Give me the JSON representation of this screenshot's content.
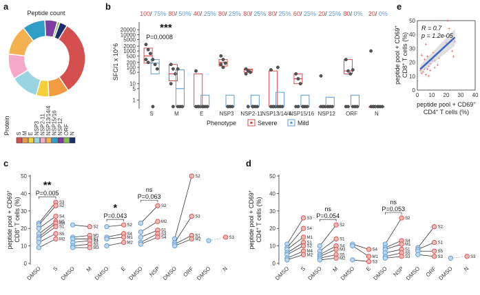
{
  "colors": {
    "severe": "#d94a4a",
    "mild": "#5b9bd5",
    "severe_fill": "#f2b8b5",
    "mild_fill": "#bcd7ee",
    "fit": "#3a64c8"
  },
  "chart_data": [
    {
      "id": "a",
      "type": "pie",
      "panel": "a",
      "title": "Peptide count",
      "legend_title": "Protein",
      "categories": [
        "S",
        "M",
        "E",
        "NSP3",
        "NSP2-11",
        "NSP13/14/4",
        "NSP15/16",
        "NSP12",
        "ORF",
        "N"
      ],
      "values": [
        30,
        8,
        5,
        11,
        10,
        12,
        9,
        5,
        1,
        3
      ],
      "colors": [
        "#d64f4f",
        "#f19a3e",
        "#f5d03c",
        "#9ad4e0",
        "#f6a8c9",
        "#f2b14e",
        "#2f9ec7",
        "#7f3fa0",
        "#7fc24a",
        "#1c2e6d"
      ]
    },
    {
      "id": "b",
      "type": "box",
      "panel": "b",
      "ylabel": "SFC/1 x 10^6",
      "yscale": "log",
      "yticks": [
        1,
        5,
        10,
        50,
        100,
        200,
        500,
        1000,
        2000,
        5000,
        10000,
        20000
      ],
      "ytick_labels": [
        "1",
        "5",
        "10",
        "50",
        "100",
        "200",
        "500",
        "1000",
        "2000",
        "5000",
        "10000",
        "20000"
      ],
      "categories": [
        "S",
        "M",
        "E",
        "NSP3",
        "NSP2-11",
        "NSP13/14/4",
        "NSP15/16",
        "NSP12",
        "ORF",
        "N"
      ],
      "responder_pct": {
        "severe": [
          "100",
          "80",
          "40",
          "80",
          "80",
          "80",
          "60",
          "20",
          "80",
          "20"
        ],
        "mild": [
          "75%",
          "50%",
          "25%",
          "25%",
          "25%",
          "25%",
          "25%",
          "25%",
          "0%",
          "0%"
        ]
      },
      "legend_title": "Phenotype",
      "legend": [
        "Severe",
        "Mild"
      ],
      "annotation": {
        "stars": "***",
        "p_label": "P=0.0008",
        "category": "S"
      },
      "series": [
        {
          "name": "Severe",
          "boxes": [
            [
              180,
              500,
              1500
            ],
            [
              15,
              40,
              150
            ],
            [
              0.4,
              0.4,
              40
            ],
            [
              120,
              200,
              300
            ],
            [
              50,
              70,
              80
            ],
            [
              0.4,
              0.4,
              60
            ],
            [
              10,
              20,
              40
            ],
            [
              0.4,
              0.4,
              0.4
            ],
            [
              40,
              60,
              300
            ],
            [
              0.4,
              0.4,
              0.4
            ]
          ],
          "points": [
            [
              2500,
              1200,
              700,
              300,
              200
            ],
            [
              150,
              80,
              40,
              10,
              0.4
            ],
            [
              60,
              0.4,
              0.4,
              0.4,
              0.4
            ],
            [
              500,
              300,
              180,
              150,
              100
            ],
            [
              80,
              60,
              50,
              40,
              0.4
            ],
            [
              70,
              0.4,
              0.4,
              0.4,
              0.4
            ],
            [
              40,
              20,
              10,
              0.4,
              0.4
            ],
            [
              30,
              0.4,
              0.4,
              0.4,
              0.4
            ],
            [
              300,
              60,
              40,
              0.4,
              0.4
            ],
            [
              1000,
              0.4,
              0.4,
              0.4,
              0.4
            ]
          ]
        },
        {
          "name": "Mild",
          "boxes": [
            [
              40,
              180,
              300
            ],
            [
              0.4,
              5,
              70
            ],
            [
              0.4,
              0.4,
              2
            ],
            [
              0.4,
              0.4,
              2
            ],
            [
              0.4,
              0.4,
              2
            ],
            [
              0.4,
              0.4,
              3
            ],
            [
              0.4,
              0.4,
              2
            ],
            [
              0.4,
              0.4,
              1.5
            ],
            [
              0.4,
              0.4,
              2
            ],
            [
              0.4,
              0.4,
              0.4
            ]
          ],
          "points": [
            [
              300,
              150,
              80,
              0.4
            ],
            [
              80,
              0.4,
              0.4,
              0.4
            ],
            [
              0.4,
              0.4,
              0.4,
              0.4
            ],
            [
              0.4,
              0.4,
              0.4,
              0.4
            ],
            [
              0.4,
              0.4,
              0.4,
              0.4
            ],
            [
              100,
              0.4,
              0.4,
              0.4
            ],
            [
              0.4,
              0.4,
              0.4,
              0.4
            ],
            [
              0.4,
              0.4,
              0.4,
              0.4
            ],
            [
              70,
              0.4,
              0.4,
              0.4
            ],
            [
              0.4,
              0.4,
              0.4,
              0.4
            ]
          ]
        }
      ]
    },
    {
      "id": "c",
      "type": "scatter",
      "panel": "c",
      "ylabel_line1": "peptide pool + CD69",
      "ylabel_line2": "CD8",
      "ylabel_line2_suffix": "T cells (%)",
      "sup": "+",
      "ylim": [
        0,
        50
      ],
      "yticks": [
        0,
        10,
        20,
        30,
        40,
        50
      ],
      "categories": [
        "DMSO",
        "S",
        "DMSO",
        "M",
        "DMSO",
        "E",
        "DMSO",
        "NSP",
        "DMSO",
        "ORF",
        "DMSO",
        "N"
      ],
      "groups": [
        {
          "dmso": [
            23,
            22,
            20,
            17,
            15,
            14,
            12,
            9
          ],
          "pep": [
            35,
            33,
            27,
            24,
            23,
            21,
            17,
            14
          ],
          "labels": [
            "S3",
            "S2",
            "S4",
            "M1",
            "M4",
            "S1",
            "S5",
            "M2"
          ],
          "red": [
            0,
            1,
            2,
            3,
            4,
            5,
            6,
            7
          ],
          "lab_side": 1,
          "annot": {
            "stars": "**",
            "p": "P=0.005"
          }
        },
        {
          "dmso": [
            22,
            15,
            14,
            12,
            10,
            9
          ],
          "pep": [
            21,
            16,
            14,
            13,
            11,
            9
          ],
          "labels": [
            "S2",
            "M1",
            "S1",
            "S3",
            "S5",
            "M3"
          ],
          "red": [
            0,
            1,
            2,
            3,
            4,
            5
          ],
          "lab_side": 1,
          "annot": null
        },
        {
          "dmso": [
            21,
            15,
            14,
            10
          ],
          "pep": [
            22,
            17,
            15,
            12
          ],
          "labels": [
            "S2",
            "S4",
            "M1",
            "M2"
          ],
          "red": [
            0,
            1,
            2,
            3
          ],
          "lab_side": 1,
          "annot": {
            "stars": "*",
            "p": "P=0.043"
          }
        },
        {
          "dmso": [
            23,
            18,
            15,
            12,
            11
          ],
          "pep": [
            33,
            24,
            19,
            17,
            15
          ],
          "labels": [
            "S2",
            "M2",
            "S1",
            "S3",
            "S4"
          ],
          "red": [
            0,
            1,
            2,
            3,
            4
          ],
          "lab_side": -1,
          "annot": {
            "stars": "ns",
            "p": "P=0.063"
          }
        },
        {
          "dmso": [
            14,
            12,
            11,
            10
          ],
          "pep": [
            50,
            27,
            16,
            14
          ],
          "labels": [
            "S2",
            "S3",
            "S1",
            "M2"
          ],
          "red": [
            0,
            1,
            2,
            3
          ],
          "lab_side": 1,
          "annot": null
        },
        {
          "dmso": [
            13
          ],
          "pep": [
            15
          ],
          "labels": [
            "S3"
          ],
          "red": [
            0
          ],
          "lab_side": 1,
          "annot": null
        }
      ]
    },
    {
      "id": "d",
      "type": "scatter",
      "panel": "d",
      "ylabel_line1": "peptide pool + CD69",
      "ylabel_line2": "CD4",
      "ylabel_line2_suffix": "T cells (%)",
      "sup": "+",
      "ylim": [
        0,
        50
      ],
      "yticks": [
        0,
        10,
        20,
        30,
        40,
        50
      ],
      "categories": [
        "DMSO",
        "S",
        "DMSO",
        "M",
        "DMSO",
        "E",
        "DMSO",
        "NSP",
        "DMSO",
        "ORF",
        "DMSO",
        "N"
      ],
      "groups": [
        {
          "dmso": [
            11,
            9,
            8,
            6,
            5,
            3,
            2
          ],
          "pep": [
            26,
            20,
            15,
            12,
            10,
            7,
            5
          ],
          "labels": [
            "S3",
            "S4",
            "M1",
            "S1",
            "S2",
            "M4",
            "M2"
          ],
          "red": [
            0,
            1,
            2,
            3,
            4,
            5,
            6
          ],
          "lab_side": 1,
          "annot": null
        },
        {
          "dmso": [
            10,
            7,
            5,
            4,
            3,
            2
          ],
          "pep": [
            22,
            14,
            10,
            8,
            5,
            3
          ],
          "labels": [
            "S2",
            "S1",
            "S4",
            "M3",
            "S5",
            "M2"
          ],
          "red": [
            0,
            1,
            2,
            3,
            4,
            5
          ],
          "lab_side": 1,
          "annot": {
            "stars": "ns",
            "p": "P=0.054"
          }
        },
        {
          "dmso": [
            11,
            10,
            2
          ],
          "pep": [
            8,
            4,
            1
          ],
          "labels": [
            "S4",
            "M1",
            "S3"
          ],
          "red": [
            0,
            1,
            2
          ],
          "lab_side": 1,
          "annot": null
        },
        {
          "dmso": [
            11,
            9,
            8,
            6,
            4,
            3
          ],
          "pep": [
            26,
            13,
            11,
            8,
            6,
            4
          ],
          "labels": [
            "S2",
            "S4",
            "M1",
            "S1",
            "S5",
            "S3"
          ],
          "red": [
            0,
            1,
            2,
            3,
            4,
            5
          ],
          "lab_side": 1,
          "annot": {
            "stars": "ns",
            "p": "P=0.053"
          }
        },
        {
          "dmso": [
            9,
            8,
            7,
            5
          ],
          "pep": [
            21,
            12,
            7,
            4
          ],
          "labels": [
            "S2",
            "S1",
            "S5",
            "S3"
          ],
          "red": [
            0,
            1,
            2,
            3
          ],
          "lab_side": 1,
          "annot": null
        },
        {
          "dmso": [
            3
          ],
          "pep": [
            4
          ],
          "labels": [
            "S3"
          ],
          "red": [
            0
          ],
          "lab_side": 1,
          "annot": null
        }
      ]
    },
    {
      "id": "e",
      "type": "scatter",
      "panel": "e",
      "ylabel_line1": "peptide pool + CD69",
      "ylabel_line2": "CD8",
      "ylabel_line2_suffix": "T cells (%)",
      "xlabel_line1": "peptide pool + CD69",
      "xlabel_line2": "CD4",
      "xlabel_line2_suffix": "T cells (%)",
      "sup": "+",
      "xlim": [
        0,
        40
      ],
      "ylim": [
        0,
        50
      ],
      "xticks": [
        0,
        10,
        20,
        30,
        40
      ],
      "yticks": [
        0,
        10,
        20,
        30,
        40,
        50
      ],
      "annotation_R": "R = 0.7",
      "annotation_p": "p = 1.2e-05",
      "x": [
        2,
        3,
        3,
        4,
        4,
        5,
        5,
        6,
        6,
        7,
        7,
        8,
        8,
        9,
        9,
        10,
        11,
        12,
        12,
        14,
        15,
        20,
        21,
        22,
        24,
        25,
        26
      ],
      "y": [
        14,
        12,
        25,
        17,
        13,
        15,
        22,
        33,
        11,
        15,
        24,
        17,
        10,
        19,
        14,
        21,
        27,
        21,
        16,
        18,
        23,
        34,
        50,
        44,
        28,
        24,
        35
      ],
      "fit": {
        "x0": 2,
        "y0": 15,
        "x1": 26,
        "y1": 38
      }
    }
  ]
}
